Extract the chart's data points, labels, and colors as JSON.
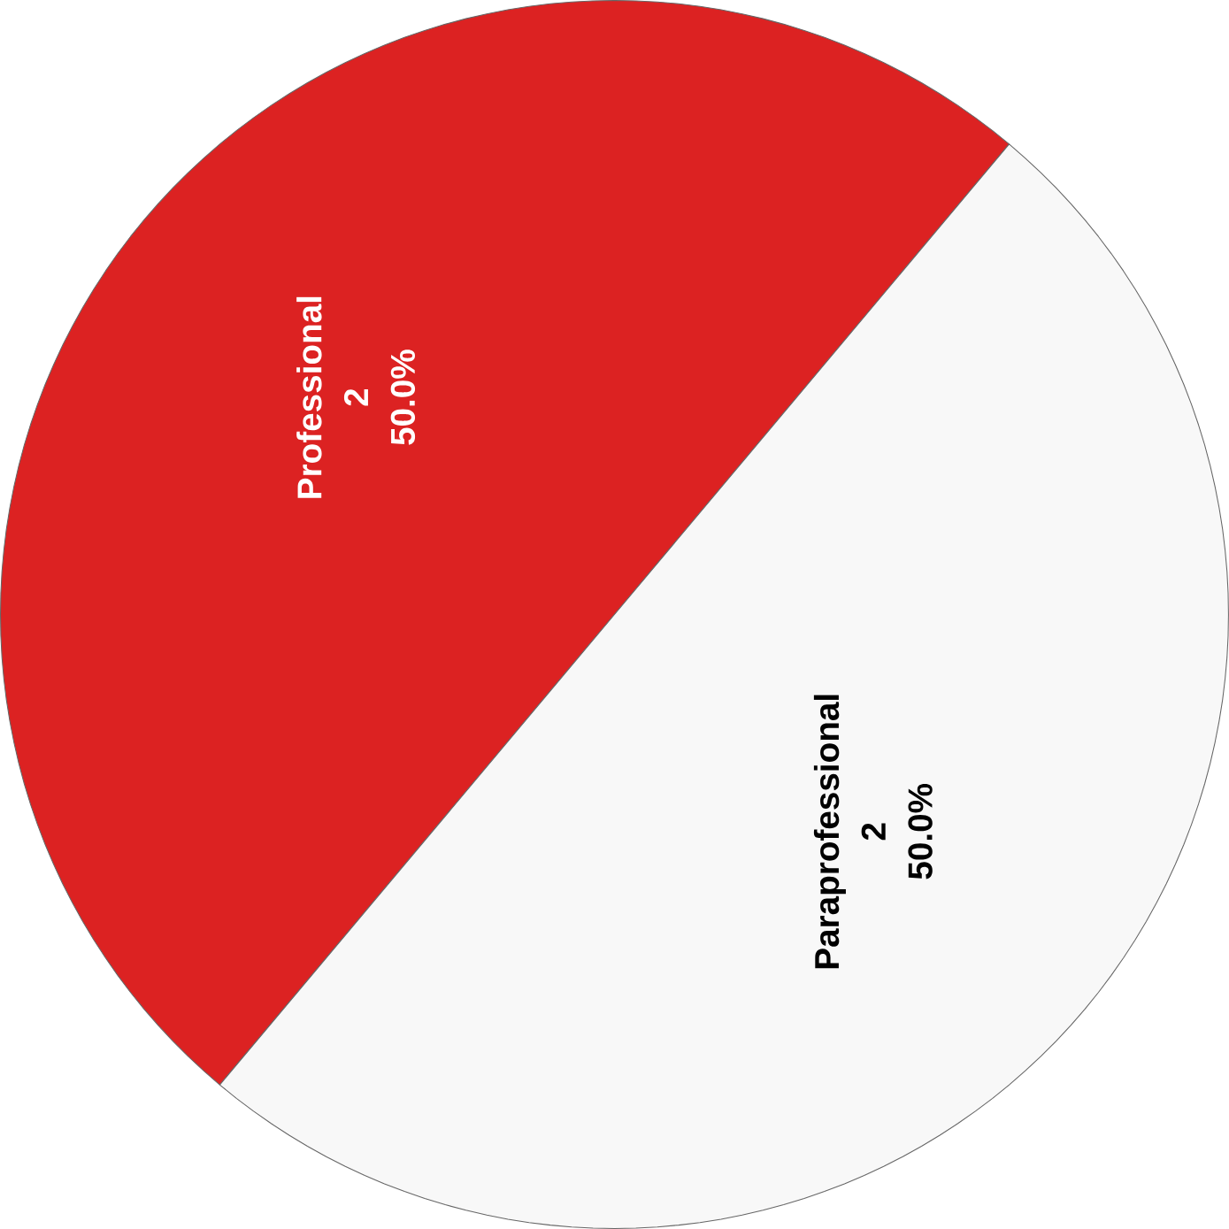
{
  "chart_data": {
    "type": "pie",
    "categories": [
      "Professional",
      "Paraprofessional"
    ],
    "values": [
      2,
      2
    ],
    "colors": [
      "#dc2222",
      "#f8f8f8"
    ],
    "data_labels": true,
    "annotations": [
      "50.0%",
      "50.0%"
    ]
  }
}
